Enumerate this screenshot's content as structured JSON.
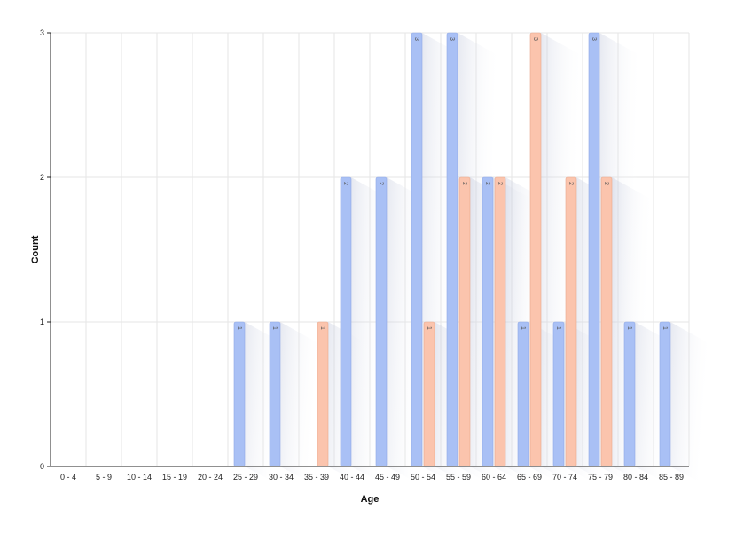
{
  "chart_data": {
    "type": "bar",
    "xlabel": "Age",
    "ylabel": "Count",
    "ylim": [
      0,
      3
    ],
    "yticks": [
      0,
      1,
      2,
      3
    ],
    "grid": true,
    "categories": [
      "0 - 4",
      "5 - 9",
      "10 - 14",
      "15 - 19",
      "20 - 24",
      "25 - 29",
      "30 - 34",
      "35 - 39",
      "40 - 44",
      "45 - 49",
      "50 - 54",
      "55 - 59",
      "60 - 64",
      "65 - 69",
      "70 - 74",
      "75 - 79",
      "80 - 84",
      "85 - 89"
    ],
    "series": [
      {
        "color": "#a9c0f5",
        "border": "#8fa8e6",
        "values": [
          0,
          0,
          0,
          0,
          0,
          1,
          1,
          0,
          2,
          2,
          3,
          3,
          2,
          1,
          1,
          3,
          1,
          1
        ]
      },
      {
        "color": "#fbc4ad",
        "border": "#e8a78c",
        "values": [
          0,
          0,
          0,
          0,
          0,
          0,
          0,
          1,
          0,
          0,
          1,
          2,
          2,
          3,
          2,
          2,
          0,
          0
        ]
      }
    ]
  }
}
